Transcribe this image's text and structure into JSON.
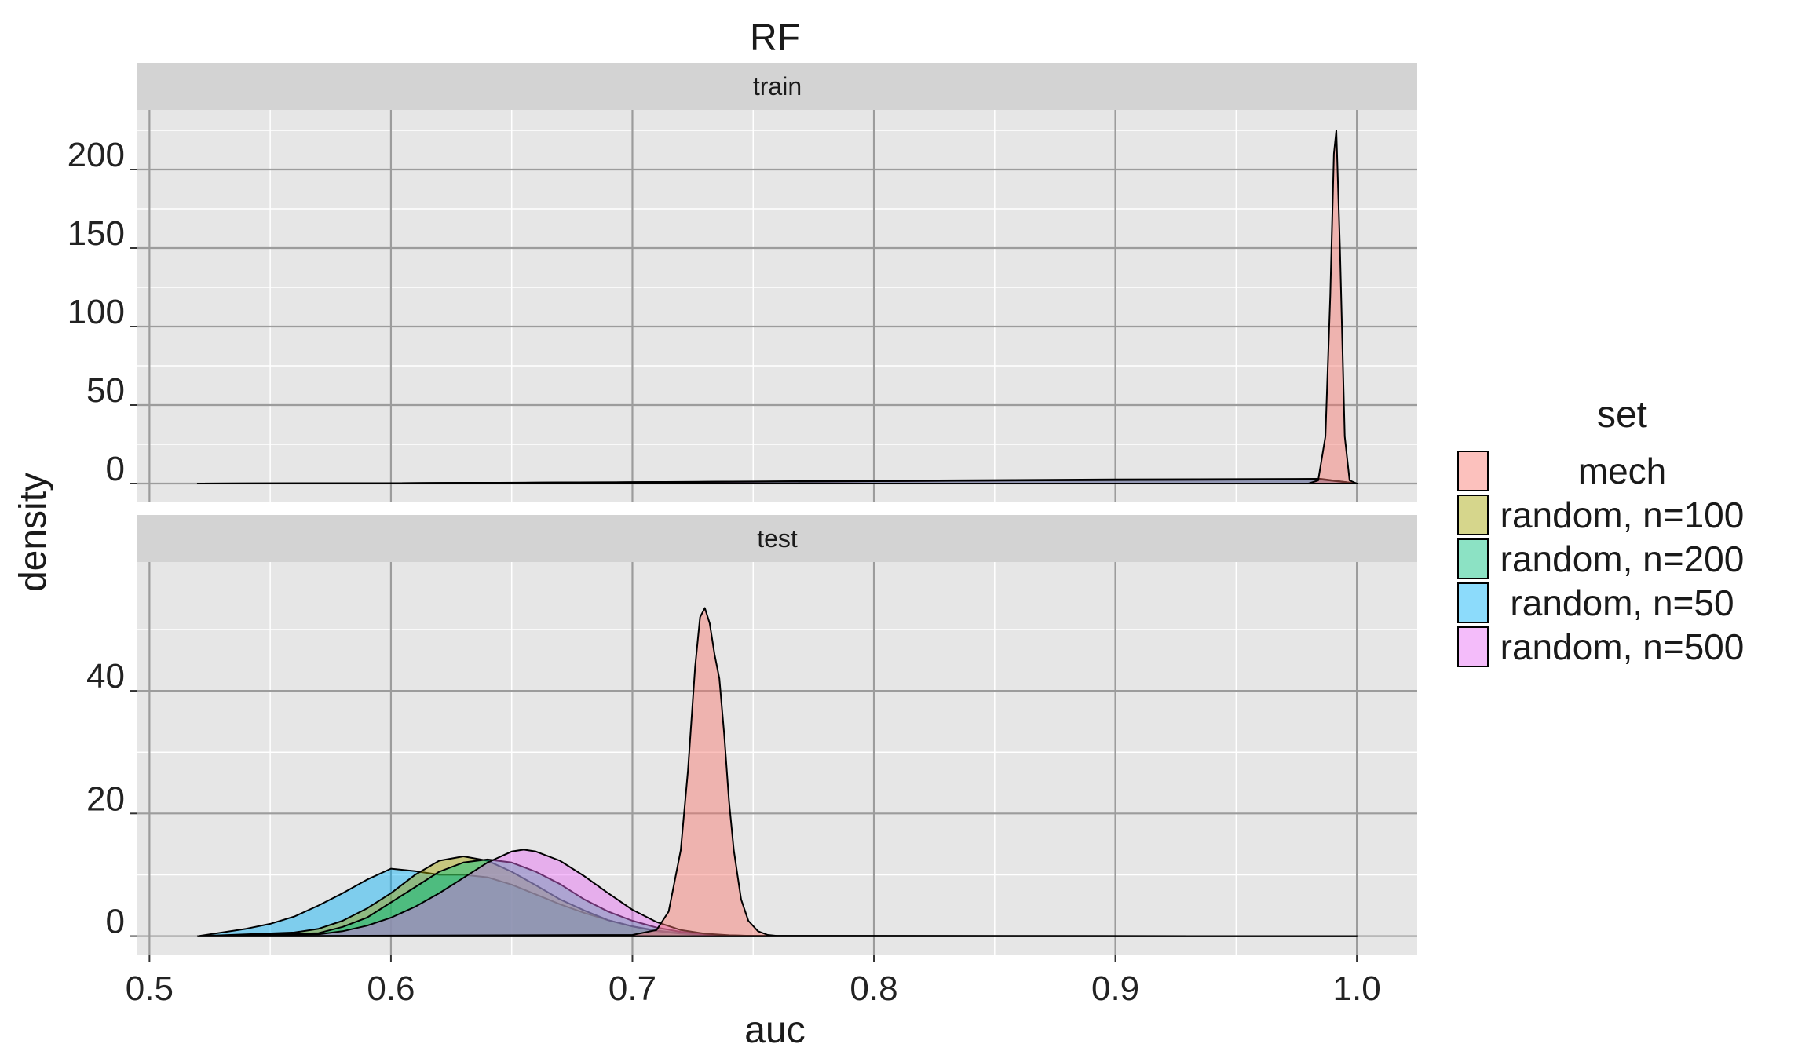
{
  "chart_data": {
    "type": "area",
    "title": "RF",
    "xlabel": "auc",
    "ylabel": "density",
    "xlim": [
      0.495,
      1.025
    ],
    "x_ticks": [
      0.5,
      0.6,
      0.7,
      0.8,
      0.9,
      1.0
    ],
    "x_tick_labels": [
      "0.5",
      "0.6",
      "0.7",
      "0.8",
      "0.9",
      "1.0"
    ],
    "grid": true,
    "legend": {
      "title": "set",
      "position": "right"
    },
    "series_meta": [
      {
        "name": "mech",
        "color": "#F8766D"
      },
      {
        "name": "random, n=100",
        "color": "#A3A500"
      },
      {
        "name": "random, n=200",
        "color": "#00BF7D"
      },
      {
        "name": "random, n=50",
        "color": "#00B0F6"
      },
      {
        "name": "random, n=500",
        "color": "#E76BF3"
      }
    ],
    "panels": [
      {
        "strip": "train",
        "ylim": [
          -12,
          238
        ],
        "y_ticks": [
          0,
          50,
          100,
          150,
          200
        ],
        "y_tick_labels": [
          "0",
          "50",
          "100",
          "150",
          "200"
        ],
        "series": [
          {
            "name": "random, n=50",
            "x": [
              0.52,
              0.6,
              0.7,
              0.8,
              0.9,
              0.985,
              1.0
            ],
            "y": [
              0,
              0.2,
              0.9,
              1.8,
              2.6,
              3.0,
              0
            ]
          },
          {
            "name": "random, n=100",
            "x": [
              0.52,
              0.6,
              0.7,
              0.8,
              0.9,
              0.985,
              1.0
            ],
            "y": [
              0,
              0.2,
              0.8,
              1.6,
              2.4,
              2.8,
              0
            ]
          },
          {
            "name": "random, n=200",
            "x": [
              0.52,
              0.6,
              0.7,
              0.8,
              0.9,
              0.985,
              1.0
            ],
            "y": [
              0,
              0.2,
              0.8,
              1.5,
              2.3,
              2.7,
              0
            ]
          },
          {
            "name": "random, n=500",
            "x": [
              0.52,
              0.6,
              0.7,
              0.8,
              0.9,
              0.985,
              1.0
            ],
            "y": [
              0,
              0.2,
              0.8,
              1.5,
              2.2,
              2.6,
              0
            ]
          },
          {
            "name": "mech",
            "x": [
              0.52,
              0.98,
              0.984,
              0.987,
              0.989,
              0.9905,
              0.9915,
              0.993,
              0.995,
              0.997,
              1.0
            ],
            "y": [
              0,
              0,
              2,
              30,
              120,
              210,
              225,
              150,
              30,
              2,
              0
            ]
          }
        ]
      },
      {
        "strip": "test",
        "ylim": [
          -3,
          61
        ],
        "y_ticks": [
          0,
          20,
          40
        ],
        "y_tick_labels": [
          "0",
          "20",
          "40"
        ],
        "series": [
          {
            "name": "random, n=50",
            "x": [
              0.52,
              0.54,
              0.55,
              0.56,
              0.57,
              0.58,
              0.59,
              0.6,
              0.61,
              0.62,
              0.63,
              0.64,
              0.65,
              0.66,
              0.67,
              0.68,
              0.69,
              0.7,
              0.71,
              0.72,
              0.73,
              0.74,
              0.75,
              0.76,
              1.0
            ],
            "y": [
              0,
              1.2,
              2.0,
              3.2,
              5.0,
              7.0,
              9.2,
              11.0,
              10.6,
              10.0,
              10.0,
              9.6,
              8.4,
              6.8,
              5.2,
              3.8,
              2.6,
              1.6,
              0.9,
              0.5,
              0.25,
              0.12,
              0.05,
              0.02,
              0
            ]
          },
          {
            "name": "random, n=100",
            "x": [
              0.52,
              0.56,
              0.57,
              0.58,
              0.59,
              0.6,
              0.61,
              0.62,
              0.63,
              0.64,
              0.65,
              0.66,
              0.67,
              0.68,
              0.69,
              0.7,
              0.71,
              0.72,
              0.73,
              0.74,
              0.75,
              1.0
            ],
            "y": [
              0,
              0.6,
              1.2,
              2.5,
              4.5,
              7.0,
              10.0,
              12.3,
              13.0,
              12.3,
              10.5,
              8.3,
              6.0,
              4.2,
              2.6,
              1.6,
              0.8,
              0.4,
              0.15,
              0.05,
              0.02,
              0
            ]
          },
          {
            "name": "random, n=200",
            "x": [
              0.52,
              0.57,
              0.58,
              0.59,
              0.6,
              0.61,
              0.62,
              0.63,
              0.64,
              0.65,
              0.66,
              0.67,
              0.68,
              0.69,
              0.7,
              0.71,
              0.72,
              0.73,
              0.74,
              0.75,
              1.0
            ],
            "y": [
              0,
              0.5,
              1.5,
              3.0,
              5.5,
              8.0,
              10.5,
              12.0,
              12.5,
              12.0,
              10.5,
              8.5,
              6.0,
              4.0,
              2.5,
              1.4,
              0.7,
              0.3,
              0.1,
              0.03,
              0
            ]
          },
          {
            "name": "random, n=500",
            "x": [
              0.52,
              0.57,
              0.58,
              0.59,
              0.6,
              0.61,
              0.62,
              0.63,
              0.64,
              0.65,
              0.655,
              0.66,
              0.67,
              0.68,
              0.69,
              0.7,
              0.71,
              0.72,
              0.73,
              0.74,
              0.75,
              1.0
            ],
            "y": [
              0,
              0.3,
              0.8,
              1.7,
              3.0,
              4.8,
              7.0,
              9.5,
              12.0,
              13.8,
              14.1,
              13.8,
              12.3,
              9.8,
              7.0,
              4.3,
              2.3,
              1.0,
              0.4,
              0.15,
              0.05,
              0
            ]
          },
          {
            "name": "mech",
            "x": [
              0.52,
              0.7,
              0.71,
              0.715,
              0.72,
              0.723,
              0.726,
              0.728,
              0.73,
              0.732,
              0.734,
              0.736,
              0.738,
              0.74,
              0.742,
              0.745,
              0.748,
              0.752,
              0.756,
              0.76,
              1.0
            ],
            "y": [
              0,
              0.2,
              1.0,
              4.0,
              14.0,
              27.0,
              44.0,
              52.0,
              53.5,
              51.0,
              46.0,
              42.0,
              33.0,
              22.0,
              14.0,
              6.0,
              2.5,
              0.8,
              0.2,
              0.05,
              0
            ]
          }
        ]
      }
    ]
  }
}
